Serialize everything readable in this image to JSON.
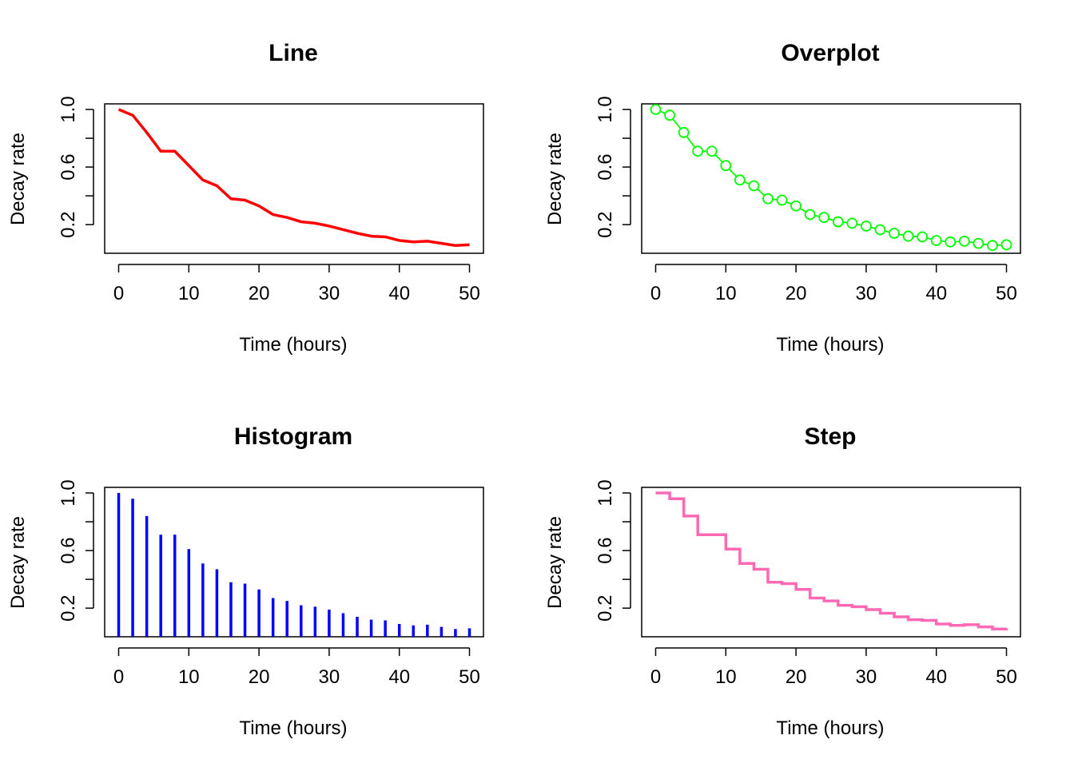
{
  "chart_data": [
    {
      "type": "line",
      "title": "Line",
      "xlabel": "Time (hours)",
      "ylabel": "Decay rate",
      "xlim": [
        0,
        50
      ],
      "ylim": [
        0.04,
        1.0
      ],
      "xticks": [
        0,
        10,
        20,
        30,
        40,
        50
      ],
      "yticks": [
        0.2,
        0.4,
        0.6,
        0.8,
        1.0
      ],
      "ytick_labels": [
        "0.2",
        "",
        "0.6",
        "",
        "1.0"
      ],
      "grid": false,
      "series": [
        {
          "color": "#ff0000",
          "line_width": "thick",
          "x": [
            0,
            2,
            4,
            6,
            8,
            10,
            12,
            14,
            16,
            18,
            20,
            22,
            24,
            26,
            28,
            30,
            32,
            34,
            36,
            38,
            40,
            42,
            44,
            46,
            48,
            50
          ],
          "y": [
            1.0,
            0.96,
            0.84,
            0.71,
            0.71,
            0.61,
            0.51,
            0.47,
            0.38,
            0.37,
            0.33,
            0.27,
            0.25,
            0.22,
            0.21,
            0.19,
            0.165,
            0.14,
            0.12,
            0.115,
            0.09,
            0.08,
            0.085,
            0.07,
            0.055,
            0.06
          ]
        }
      ]
    },
    {
      "type": "line",
      "title": "Overplot",
      "xlabel": "Time (hours)",
      "ylabel": "Decay rate",
      "xlim": [
        0,
        50
      ],
      "ylim": [
        0.04,
        1.0
      ],
      "xticks": [
        0,
        10,
        20,
        30,
        40,
        50
      ],
      "yticks": [
        0.2,
        0.4,
        0.6,
        0.8,
        1.0
      ],
      "ytick_labels": [
        "0.2",
        "",
        "0.6",
        "",
        "1.0"
      ],
      "grid": false,
      "series": [
        {
          "color": "#00ff00",
          "marker": "open-circle",
          "x": [
            0,
            2,
            4,
            6,
            8,
            10,
            12,
            14,
            16,
            18,
            20,
            22,
            24,
            26,
            28,
            30,
            32,
            34,
            36,
            38,
            40,
            42,
            44,
            46,
            48,
            50
          ],
          "y": [
            1.0,
            0.96,
            0.84,
            0.71,
            0.71,
            0.61,
            0.51,
            0.47,
            0.38,
            0.37,
            0.33,
            0.27,
            0.25,
            0.22,
            0.21,
            0.19,
            0.165,
            0.14,
            0.12,
            0.115,
            0.09,
            0.08,
            0.085,
            0.07,
            0.055,
            0.06
          ]
        }
      ]
    },
    {
      "type": "bar",
      "style": "vertical lines",
      "title": "Histogram",
      "xlabel": "Time (hours)",
      "ylabel": "Decay rate",
      "xlim": [
        0,
        50
      ],
      "ylim": [
        0.04,
        1.0
      ],
      "xticks": [
        0,
        10,
        20,
        30,
        40,
        50
      ],
      "yticks": [
        0.2,
        0.4,
        0.6,
        0.8,
        1.0
      ],
      "ytick_labels": [
        "0.2",
        "",
        "0.6",
        "",
        "1.0"
      ],
      "grid": false,
      "series": [
        {
          "color": "#0000ff",
          "x": [
            0,
            2,
            4,
            6,
            8,
            10,
            12,
            14,
            16,
            18,
            20,
            22,
            24,
            26,
            28,
            30,
            32,
            34,
            36,
            38,
            40,
            42,
            44,
            46,
            48,
            50
          ],
          "y": [
            1.0,
            0.96,
            0.84,
            0.71,
            0.71,
            0.61,
            0.51,
            0.47,
            0.38,
            0.37,
            0.33,
            0.27,
            0.25,
            0.22,
            0.21,
            0.19,
            0.165,
            0.14,
            0.12,
            0.115,
            0.09,
            0.08,
            0.085,
            0.07,
            0.055,
            0.06
          ]
        }
      ]
    },
    {
      "type": "line",
      "style": "step",
      "title": "Step",
      "xlabel": "Time (hours)",
      "ylabel": "Decay rate",
      "xlim": [
        0,
        50
      ],
      "ylim": [
        0.04,
        1.0
      ],
      "xticks": [
        0,
        10,
        20,
        30,
        40,
        50
      ],
      "yticks": [
        0.2,
        0.4,
        0.6,
        0.8,
        1.0
      ],
      "ytick_labels": [
        "0.2",
        "",
        "0.6",
        "",
        "1.0"
      ],
      "grid": false,
      "series": [
        {
          "color": "#ff69b4",
          "line_width": "thick",
          "x": [
            0,
            2,
            4,
            6,
            8,
            10,
            12,
            14,
            16,
            18,
            20,
            22,
            24,
            26,
            28,
            30,
            32,
            34,
            36,
            38,
            40,
            42,
            44,
            46,
            48,
            50
          ],
          "y": [
            1.0,
            0.96,
            0.84,
            0.71,
            0.71,
            0.61,
            0.51,
            0.47,
            0.38,
            0.37,
            0.33,
            0.27,
            0.25,
            0.22,
            0.21,
            0.19,
            0.165,
            0.14,
            0.12,
            0.115,
            0.09,
            0.08,
            0.085,
            0.07,
            0.055,
            0.06
          ]
        }
      ]
    }
  ]
}
